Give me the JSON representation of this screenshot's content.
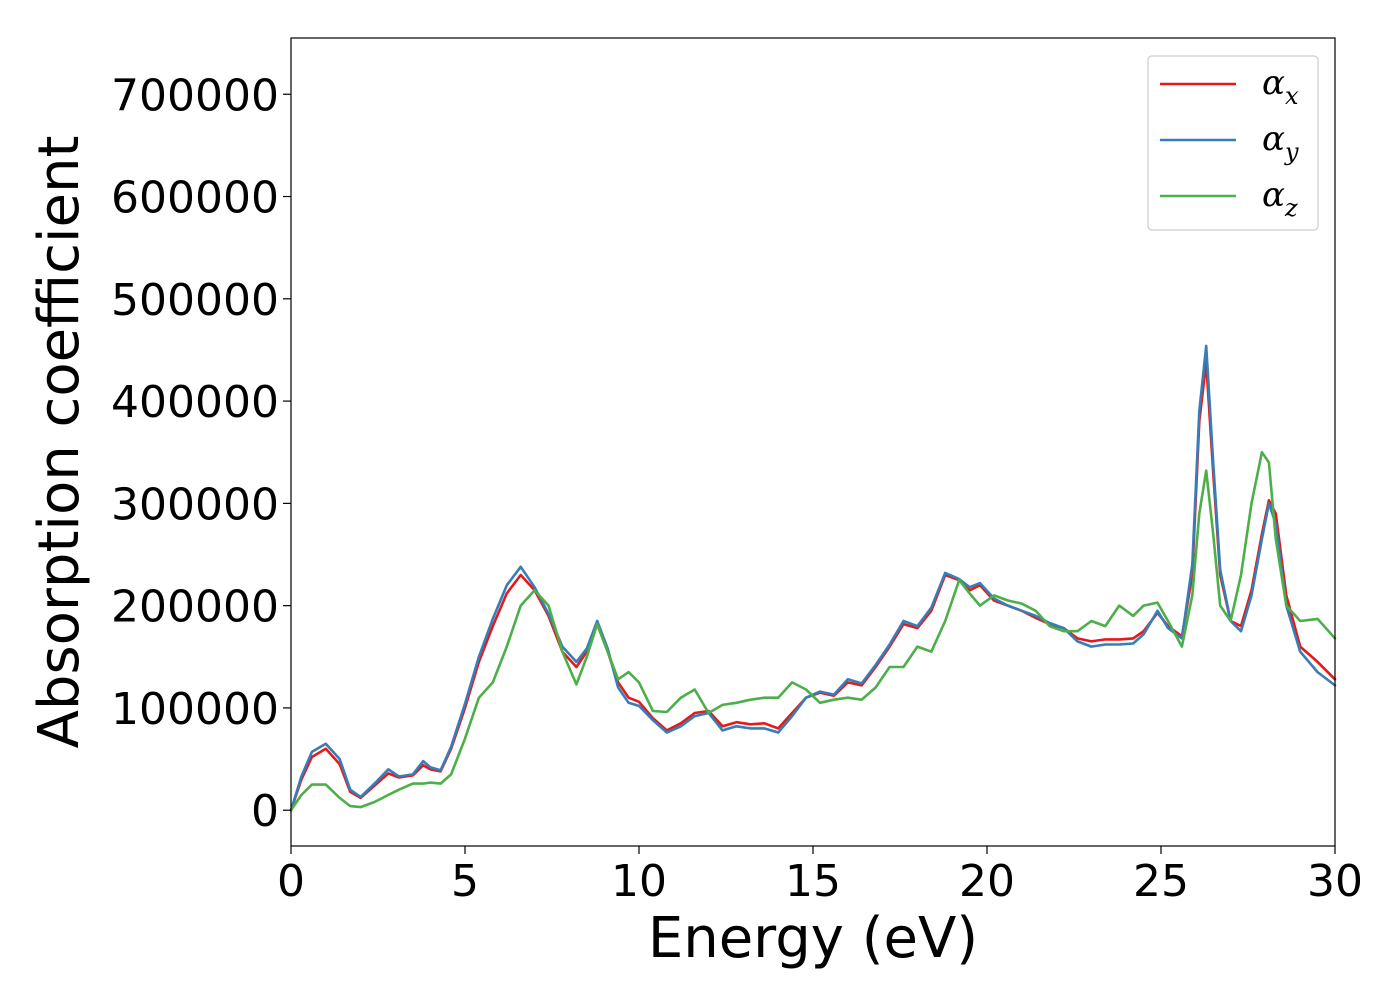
{
  "chart_data": {
    "type": "line",
    "title": "",
    "xlabel": "Energy (eV)",
    "ylabel": "Absorption coefficient",
    "xlim": [
      0,
      30
    ],
    "ylim": [
      -35000,
      755000
    ],
    "xticks": [
      0,
      5,
      10,
      15,
      20,
      25,
      30
    ],
    "yticks": [
      0,
      100000,
      200000,
      300000,
      400000,
      500000,
      600000,
      700000
    ],
    "grid": false,
    "legend_position": "top-right",
    "series": [
      {
        "name": "αx",
        "legend_base": "α",
        "legend_sub": "x",
        "color": "#e41a1c",
        "x": [
          0,
          0.3,
          0.6,
          1.0,
          1.4,
          1.7,
          2.0,
          2.4,
          2.8,
          3.1,
          3.5,
          3.8,
          4.0,
          4.3,
          4.6,
          5.0,
          5.4,
          5.8,
          6.2,
          6.6,
          7.0,
          7.4,
          7.8,
          8.2,
          8.5,
          8.8,
          9.1,
          9.4,
          9.7,
          10.0,
          10.4,
          10.8,
          11.2,
          11.6,
          12.0,
          12.4,
          12.8,
          13.2,
          13.6,
          14.0,
          14.4,
          14.8,
          15.2,
          15.6,
          16.0,
          16.4,
          16.8,
          17.2,
          17.6,
          18.0,
          18.4,
          18.8,
          19.2,
          19.5,
          19.8,
          20.2,
          20.6,
          21.0,
          21.4,
          21.8,
          22.2,
          22.6,
          23.0,
          23.4,
          23.8,
          24.2,
          24.5,
          24.9,
          25.2,
          25.6,
          25.9,
          26.1,
          26.3,
          26.5,
          26.7,
          27.0,
          27.3,
          27.6,
          27.9,
          28.1,
          28.3,
          28.6,
          29.0,
          29.5,
          30.0
        ],
        "y": [
          0,
          30000,
          52000,
          60000,
          45000,
          18000,
          12000,
          24000,
          36000,
          32000,
          34000,
          44000,
          40000,
          38000,
          60000,
          100000,
          145000,
          180000,
          212000,
          230000,
          215000,
          190000,
          155000,
          140000,
          155000,
          182000,
          155000,
          125000,
          110000,
          106000,
          90000,
          78000,
          85000,
          95000,
          97000,
          82000,
          86000,
          84000,
          85000,
          80000,
          95000,
          110000,
          115000,
          112000,
          125000,
          122000,
          140000,
          160000,
          182000,
          178000,
          195000,
          230000,
          225000,
          215000,
          220000,
          205000,
          200000,
          195000,
          188000,
          182000,
          178000,
          168000,
          165000,
          167000,
          167000,
          168000,
          175000,
          193000,
          180000,
          170000,
          230000,
          380000,
          438000,
          330000,
          230000,
          185000,
          180000,
          215000,
          270000,
          303000,
          290000,
          210000,
          160000,
          145000,
          128000
        ]
      },
      {
        "name": "αy",
        "legend_base": "α",
        "legend_sub": "y",
        "color": "#377eb8",
        "x": [
          0,
          0.3,
          0.6,
          1.0,
          1.4,
          1.7,
          2.0,
          2.4,
          2.8,
          3.1,
          3.5,
          3.8,
          4.0,
          4.3,
          4.6,
          5.0,
          5.4,
          5.8,
          6.2,
          6.6,
          7.0,
          7.4,
          7.8,
          8.2,
          8.5,
          8.8,
          9.1,
          9.4,
          9.7,
          10.0,
          10.4,
          10.8,
          11.2,
          11.6,
          12.0,
          12.4,
          12.8,
          13.2,
          13.6,
          14.0,
          14.4,
          14.8,
          15.2,
          15.6,
          16.0,
          16.4,
          16.8,
          17.2,
          17.6,
          18.0,
          18.4,
          18.8,
          19.2,
          19.5,
          19.8,
          20.2,
          20.6,
          21.0,
          21.4,
          21.8,
          22.2,
          22.6,
          23.0,
          23.4,
          23.8,
          24.2,
          24.5,
          24.9,
          25.2,
          25.6,
          25.9,
          26.1,
          26.3,
          26.5,
          26.7,
          27.0,
          27.3,
          27.6,
          27.9,
          28.1,
          28.3,
          28.6,
          29.0,
          29.5,
          30.0
        ],
        "y": [
          0,
          33000,
          57000,
          65000,
          50000,
          20000,
          13000,
          26000,
          40000,
          33000,
          35000,
          48000,
          42000,
          39000,
          62000,
          104000,
          150000,
          187000,
          220000,
          238000,
          218000,
          192000,
          160000,
          145000,
          158000,
          185000,
          158000,
          120000,
          105000,
          102000,
          88000,
          76000,
          82000,
          92000,
          95000,
          78000,
          82000,
          80000,
          80000,
          76000,
          92000,
          110000,
          116000,
          113000,
          128000,
          124000,
          142000,
          162000,
          185000,
          180000,
          198000,
          232000,
          226000,
          218000,
          222000,
          207000,
          200000,
          195000,
          190000,
          183000,
          178000,
          165000,
          160000,
          162000,
          162000,
          163000,
          172000,
          195000,
          178000,
          168000,
          240000,
          390000,
          454000,
          340000,
          235000,
          185000,
          175000,
          210000,
          265000,
          300000,
          280000,
          200000,
          155000,
          135000,
          122000
        ]
      },
      {
        "name": "αz",
        "legend_base": "α",
        "legend_sub": "z",
        "color": "#4daf4a",
        "x": [
          0,
          0.3,
          0.6,
          1.0,
          1.4,
          1.7,
          2.0,
          2.4,
          2.8,
          3.1,
          3.5,
          3.8,
          4.0,
          4.3,
          4.6,
          5.0,
          5.4,
          5.8,
          6.2,
          6.6,
          7.0,
          7.4,
          7.8,
          8.2,
          8.5,
          8.8,
          9.1,
          9.4,
          9.7,
          10.0,
          10.4,
          10.8,
          11.2,
          11.6,
          12.0,
          12.4,
          12.8,
          13.2,
          13.6,
          14.0,
          14.4,
          14.8,
          15.2,
          15.6,
          16.0,
          16.4,
          16.8,
          17.2,
          17.6,
          18.0,
          18.4,
          18.8,
          19.2,
          19.5,
          19.8,
          20.2,
          20.6,
          21.0,
          21.4,
          21.8,
          22.2,
          22.6,
          23.0,
          23.4,
          23.8,
          24.2,
          24.5,
          24.9,
          25.2,
          25.6,
          25.9,
          26.1,
          26.3,
          26.5,
          26.7,
          27.0,
          27.3,
          27.6,
          27.9,
          28.1,
          28.3,
          28.6,
          29.0,
          29.5,
          30.0
        ],
        "y": [
          0,
          15000,
          25000,
          25000,
          12000,
          4000,
          3000,
          8000,
          15000,
          20000,
          26000,
          26000,
          27000,
          26000,
          35000,
          70000,
          110000,
          125000,
          160000,
          200000,
          215000,
          200000,
          155000,
          123000,
          150000,
          182000,
          155000,
          128000,
          135000,
          125000,
          97000,
          96000,
          110000,
          118000,
          95000,
          103000,
          105000,
          108000,
          110000,
          110000,
          125000,
          118000,
          105000,
          108000,
          110000,
          108000,
          120000,
          140000,
          140000,
          160000,
          155000,
          185000,
          225000,
          212000,
          200000,
          210000,
          205000,
          202000,
          195000,
          180000,
          175000,
          175000,
          185000,
          180000,
          200000,
          190000,
          200000,
          203000,
          185000,
          160000,
          210000,
          290000,
          332000,
          270000,
          200000,
          185000,
          230000,
          300000,
          350000,
          340000,
          265000,
          200000,
          185000,
          187000,
          168000
        ]
      }
    ]
  }
}
